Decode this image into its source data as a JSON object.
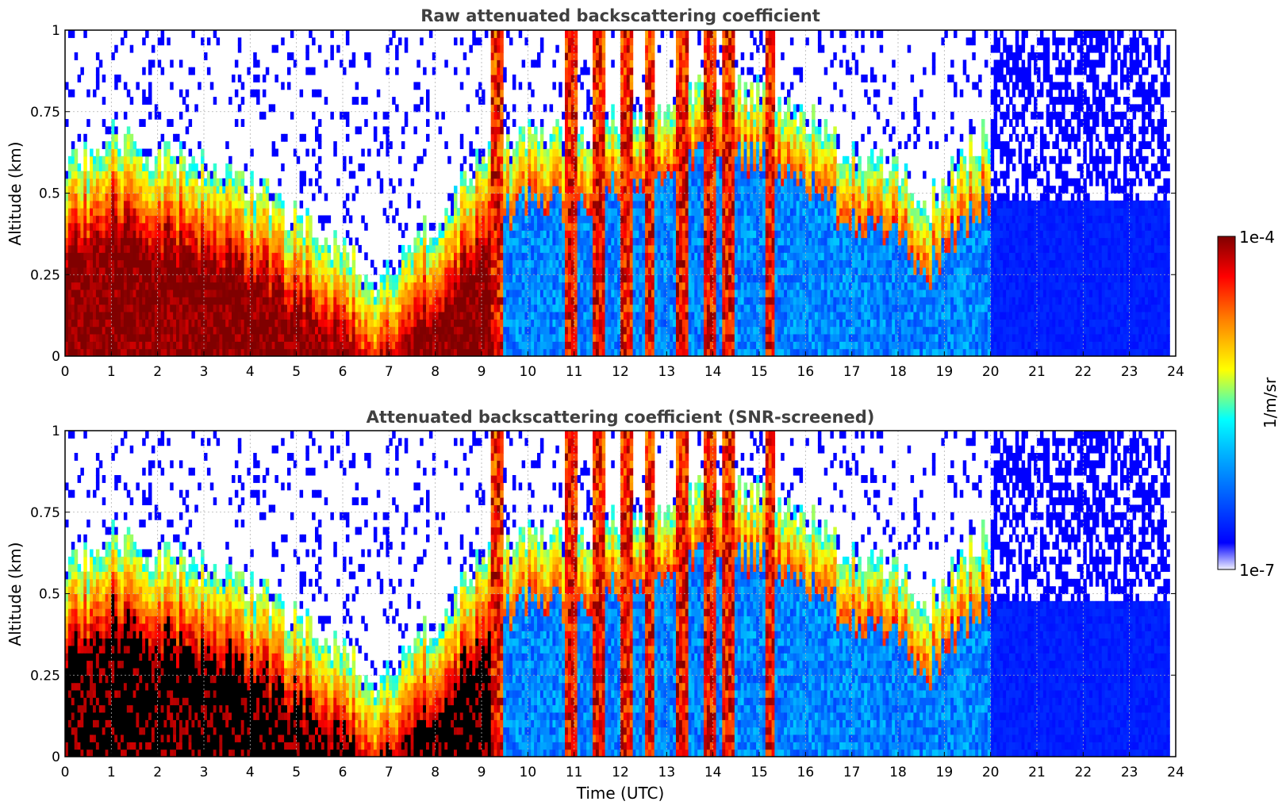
{
  "chart_data": [
    {
      "type": "heatmap",
      "title": "Raw attenuated backscattering coefficient",
      "xlabel": "",
      "ylabel": "Altitude (km)",
      "xlim": [
        0,
        24
      ],
      "ylim": [
        0,
        1
      ],
      "x_ticks": [
        "0",
        "1",
        "2",
        "3",
        "4",
        "5",
        "6",
        "7",
        "8",
        "9",
        "10",
        "11",
        "12",
        "13",
        "14",
        "15",
        "16",
        "17",
        "18",
        "19",
        "20",
        "21",
        "22",
        "23",
        "24"
      ],
      "y_ticks": [
        "0",
        "0.25",
        "0.5",
        "0.75",
        "1"
      ],
      "grid": true,
      "screened": false,
      "layer_top_km": [
        [
          0,
          0.45
        ],
        [
          1,
          0.55
        ],
        [
          2,
          0.5
        ],
        [
          3,
          0.45
        ],
        [
          4,
          0.4
        ],
        [
          5,
          0.3
        ],
        [
          6,
          0.2
        ],
        [
          6.8,
          0.1
        ],
        [
          8,
          0.3
        ],
        [
          9,
          0.48
        ],
        [
          10,
          0.55
        ],
        [
          11,
          0.55
        ],
        [
          12,
          0.6
        ],
        [
          13,
          0.65
        ],
        [
          14,
          0.7
        ],
        [
          15,
          0.68
        ],
        [
          16,
          0.6
        ],
        [
          17,
          0.5
        ],
        [
          18,
          0.45
        ],
        [
          18.5,
          0.3
        ],
        [
          19,
          0.42
        ],
        [
          19.8,
          0.55
        ],
        [
          20,
          0.5
        ]
      ],
      "cloud_columns_utc": [
        9.3,
        10.9,
        11.5,
        12.1,
        12.6,
        13.3,
        13.9,
        14.3,
        15.2
      ]
    },
    {
      "type": "heatmap",
      "title": "Attenuated backscattering coefficient (SNR-screened)",
      "xlabel": "Time (UTC)",
      "ylabel": "Altitude (km)",
      "xlim": [
        0,
        24
      ],
      "ylim": [
        0,
        1
      ],
      "x_ticks": [
        "0",
        "1",
        "2",
        "3",
        "4",
        "5",
        "6",
        "7",
        "8",
        "9",
        "10",
        "11",
        "12",
        "13",
        "14",
        "15",
        "16",
        "17",
        "18",
        "19",
        "20",
        "21",
        "22",
        "23",
        "24"
      ],
      "y_ticks": [
        "0",
        "0.25",
        "0.5",
        "0.75",
        "1"
      ],
      "grid": true,
      "screened": true,
      "layer_top_km": [
        [
          0,
          0.45
        ],
        [
          1,
          0.55
        ],
        [
          2,
          0.5
        ],
        [
          3,
          0.45
        ],
        [
          4,
          0.4
        ],
        [
          5,
          0.3
        ],
        [
          6,
          0.2
        ],
        [
          6.8,
          0.1
        ],
        [
          8,
          0.3
        ],
        [
          9,
          0.48
        ],
        [
          10,
          0.55
        ],
        [
          11,
          0.55
        ],
        [
          12,
          0.6
        ],
        [
          13,
          0.65
        ],
        [
          14,
          0.7
        ],
        [
          15,
          0.68
        ],
        [
          16,
          0.6
        ],
        [
          17,
          0.5
        ],
        [
          18,
          0.45
        ],
        [
          18.5,
          0.3
        ],
        [
          19,
          0.42
        ],
        [
          19.8,
          0.55
        ],
        [
          20,
          0.5
        ]
      ],
      "cloud_columns_utc": [
        9.3,
        10.9,
        11.5,
        12.1,
        12.6,
        13.3,
        13.9,
        14.3,
        15.2
      ]
    }
  ],
  "colorbar": {
    "label": "1/m/sr",
    "max_label": "1e-4",
    "min_label": "1e-7",
    "scale": "log",
    "colormap": [
      "#f0f0ff",
      "#0000ff",
      "#00b4ff",
      "#00ffff",
      "#ffff00",
      "#ff8000",
      "#ff0000",
      "#800000"
    ]
  }
}
